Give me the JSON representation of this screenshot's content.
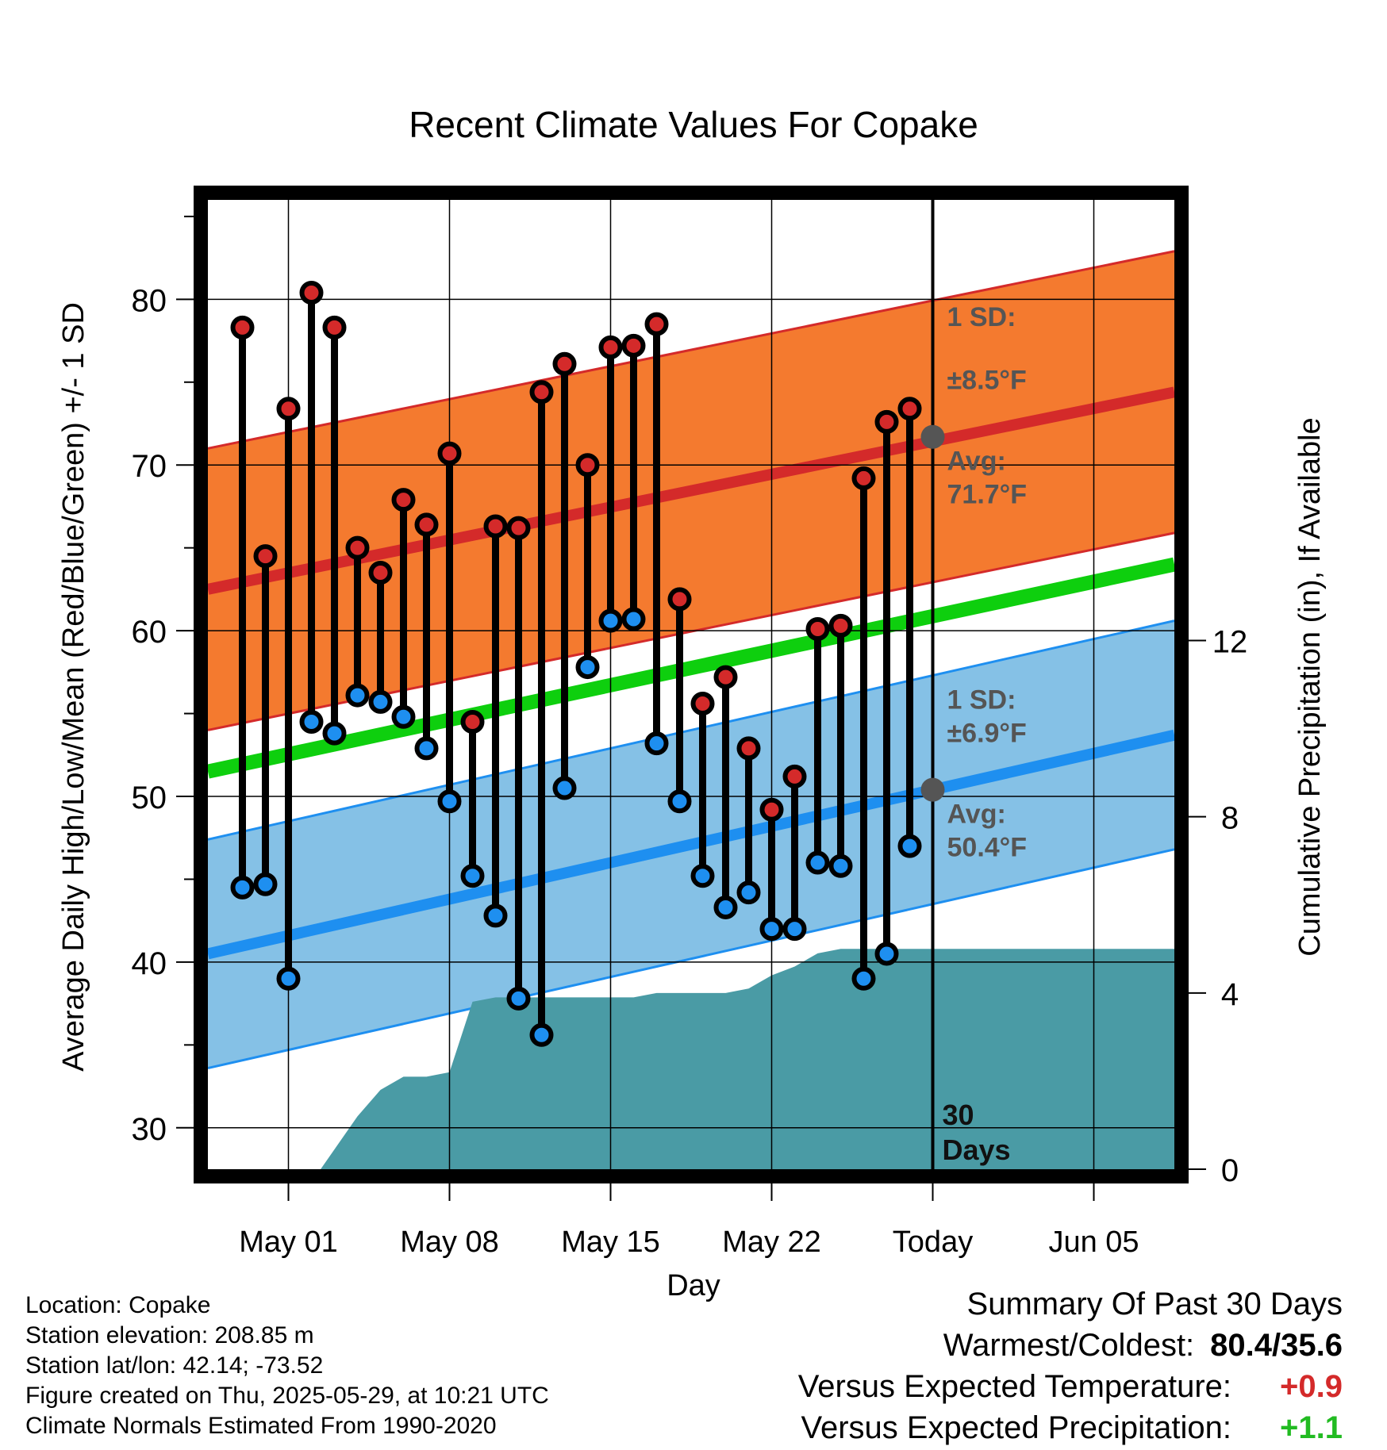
{
  "chart_data": {
    "type": "line",
    "title": "Recent Climate Values For Copake",
    "xlabel": "Day",
    "ylabel": "Average Daily High/Low/Mean (Red/Blue/Green) +/- 1 SD",
    "y2label": "Cumulative Precipitation (in), If Available",
    "ylim": [
      27.5,
      86
    ],
    "y2lim": [
      0,
      22
    ],
    "xlim": [
      -3.5,
      38.5
    ],
    "x_axis_note": "x values are days relative to May 01 (May 01 = 0, today = May 29 = 28)",
    "yticks": [
      30,
      40,
      50,
      60,
      70,
      80
    ],
    "y2ticks": [
      0,
      4,
      8,
      12
    ],
    "xticks": [
      {
        "x": 0,
        "label": "May 01"
      },
      {
        "x": 7,
        "label": "May 08"
      },
      {
        "x": 14,
        "label": "May 15"
      },
      {
        "x": 21,
        "label": "May 22"
      },
      {
        "x": 28,
        "label": "Today"
      },
      {
        "x": 35,
        "label": "Jun 05"
      }
    ],
    "today_x": 28,
    "today_label_line1": "30",
    "today_label_line2": "Days",
    "days": [
      -2,
      -1,
      0,
      1,
      2,
      3,
      4,
      5,
      6,
      7,
      8,
      9,
      10,
      11,
      12,
      13,
      14,
      15,
      16,
      17,
      18,
      19,
      20,
      21,
      22,
      23,
      24,
      25,
      26,
      27
    ],
    "highs": [
      78.3,
      64.5,
      73.4,
      80.4,
      78.3,
      65.0,
      63.5,
      67.9,
      66.4,
      70.7,
      54.5,
      66.3,
      66.2,
      74.4,
      76.1,
      70.0,
      77.1,
      77.2,
      78.5,
      61.9,
      55.6,
      57.2,
      52.9,
      49.2,
      51.2,
      60.1,
      60.3,
      69.2,
      72.6,
      73.4
    ],
    "lows": [
      44.5,
      44.7,
      39.0,
      54.5,
      53.8,
      56.1,
      55.7,
      54.8,
      52.9,
      49.7,
      45.2,
      42.8,
      37.8,
      35.6,
      50.5,
      57.8,
      60.6,
      60.7,
      53.2,
      49.7,
      45.2,
      43.3,
      44.2,
      42.0,
      42.0,
      46.0,
      45.8,
      39.0,
      40.5,
      47.0
    ],
    "normal_high": {
      "start": 62.5,
      "end": 74.4,
      "sd": 8.5
    },
    "normal_low": {
      "start": 40.5,
      "end": 53.7,
      "sd": 6.9
    },
    "normal_mean": {
      "start": 51.5,
      "end": 64.0
    },
    "today_avg_high": 71.7,
    "today_avg_low": 50.4,
    "annotations": {
      "high_sd_line1": "1 SD:",
      "high_sd_line2": "±8.5°F",
      "high_avg_line1": "Avg:",
      "high_avg_line2": "71.7°F",
      "low_sd_line1": "1 SD:",
      "low_sd_line2": "±6.9°F",
      "low_avg_line1": "Avg:",
      "low_avg_line2": "50.4°F"
    },
    "precip_cumulative": [
      {
        "x": -3.5,
        "y": 0
      },
      {
        "x": 1.4,
        "y": 0
      },
      {
        "x": 3,
        "y": 1.2
      },
      {
        "x": 4,
        "y": 1.8
      },
      {
        "x": 5,
        "y": 2.1
      },
      {
        "x": 6,
        "y": 2.1
      },
      {
        "x": 7,
        "y": 2.2
      },
      {
        "x": 8,
        "y": 3.8
      },
      {
        "x": 9,
        "y": 3.9
      },
      {
        "x": 14,
        "y": 3.9
      },
      {
        "x": 15,
        "y": 3.9
      },
      {
        "x": 16,
        "y": 4.0
      },
      {
        "x": 19,
        "y": 4.0
      },
      {
        "x": 20,
        "y": 4.1
      },
      {
        "x": 21,
        "y": 4.4
      },
      {
        "x": 22,
        "y": 4.6
      },
      {
        "x": 23,
        "y": 4.9
      },
      {
        "x": 24,
        "y": 5.0
      },
      {
        "x": 27,
        "y": 5.0
      },
      {
        "x": 38.5,
        "y": 5.0
      }
    ],
    "colors": {
      "high_band": "#f47a2f",
      "high_line": "#d42a2a",
      "low_band": "#85c1e6",
      "low_line": "#1e8ff0",
      "mean_line": "#0ecf0e",
      "precip": "#4a9ba5",
      "high_dot": "#d42a2a",
      "low_dot": "#1e8ff0",
      "annotation_text": "#555555",
      "avg_dot": "#555555"
    }
  },
  "info": {
    "location": "Location: Copake",
    "elevation": "Station elevation: 208.85 m",
    "latlon": "Station lat/lon: 42.14; -73.52",
    "created": "Figure created on Thu, 2025-05-29, at 10:21 UTC",
    "normals": "Climate Normals Estimated From 1990-2020"
  },
  "summary": {
    "title": "Summary Of Past 30 Days",
    "warm_cold_label": "Warmest/Coldest:",
    "warm_cold_value": "80.4/35.6",
    "temp_label": "Versus Expected Temperature:",
    "temp_value": "+0.9",
    "temp_color": "#d42a2a",
    "precip_label": "Versus Expected Precipitation:",
    "precip_value": "+1.1",
    "precip_color": "#22bb22"
  }
}
